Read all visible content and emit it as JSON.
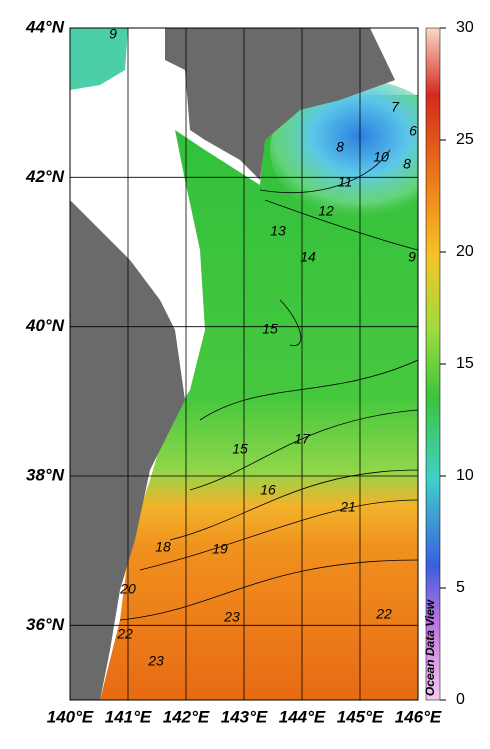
{
  "map": {
    "xlim": [
      140,
      146
    ],
    "ylim": [
      35,
      44
    ],
    "xticks": [
      {
        "value": 140,
        "label": "140°E"
      },
      {
        "value": 141,
        "label": "141°E"
      },
      {
        "value": 142,
        "label": "142°E"
      },
      {
        "value": 143,
        "label": "143°E"
      },
      {
        "value": 144,
        "label": "144°E"
      },
      {
        "value": 145,
        "label": "145°E"
      },
      {
        "value": 146,
        "label": "146°E"
      }
    ],
    "yticks": [
      {
        "value": 44,
        "label": "44°N"
      },
      {
        "value": 42,
        "label": "42°N"
      },
      {
        "value": 40,
        "label": "40°N"
      },
      {
        "value": 38,
        "label": "38°N"
      },
      {
        "value": 36,
        "label": "36°N"
      }
    ],
    "colorbar": {
      "lim": [
        0,
        30
      ],
      "ticks": [
        0,
        5,
        10,
        15,
        20,
        25,
        30
      ]
    },
    "contour_labels": [
      9,
      7,
      6,
      8,
      10,
      8,
      11,
      12,
      13,
      14,
      9,
      15,
      15,
      17,
      16,
      21,
      18,
      19,
      20,
      22,
      23,
      22,
      23
    ],
    "watermark": "Ocean Data View"
  }
}
